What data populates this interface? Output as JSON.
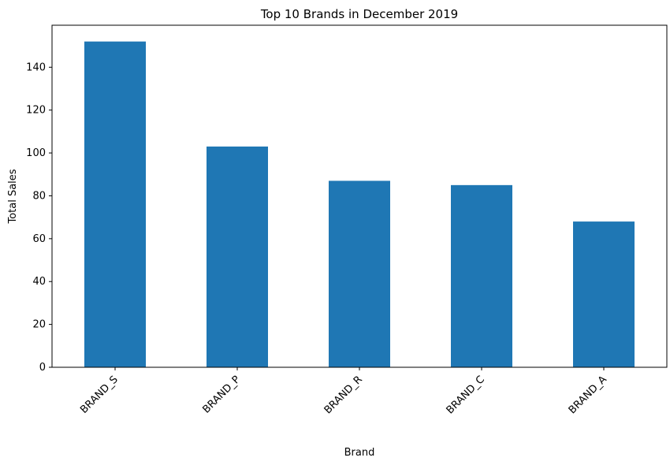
{
  "chart_data": {
    "type": "bar",
    "title": "Top 10 Brands in December 2019",
    "xlabel": "Brand",
    "ylabel": "Total Sales",
    "categories": [
      "BRAND_S",
      "BRAND_P",
      "BRAND_R",
      "BRAND_C",
      "BRAND_A"
    ],
    "values": [
      152,
      103,
      87,
      85,
      68
    ],
    "ylim": [
      0,
      159.6
    ],
    "yticks": [
      0,
      20,
      40,
      60,
      80,
      100,
      120,
      140
    ],
    "xtick_rotation": 45,
    "grid": false,
    "legend": "none",
    "bar_color": "#1f77b4"
  }
}
